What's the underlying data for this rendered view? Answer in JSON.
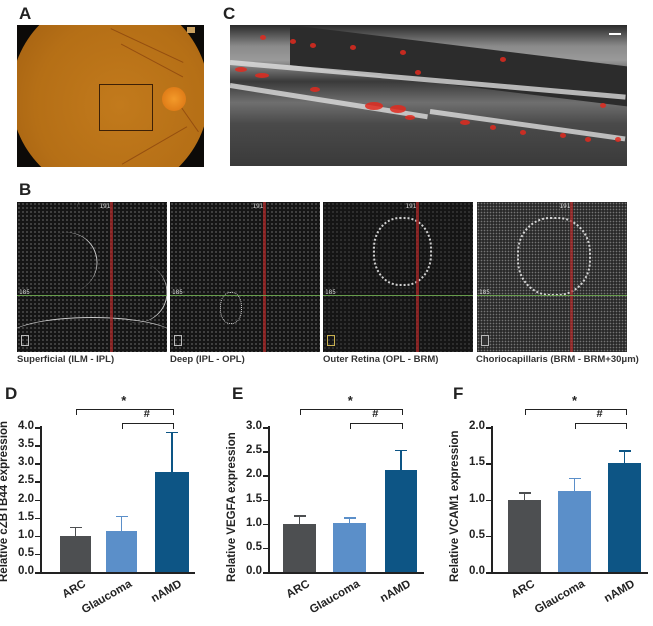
{
  "figure": {
    "panel_labels": {
      "A": "A",
      "B": "B",
      "C": "C",
      "D": "D",
      "E": "E",
      "F": "F"
    },
    "panel_A": {
      "description": "Color fundus photograph with boxed region of interest near macula",
      "colors": {
        "fundus": "#b56f16",
        "optic_disc": "#f39a2a",
        "roi_box": "#3d2006"
      }
    },
    "panel_C": {
      "description": "OCT B-scan with red flow-signal overlay",
      "overlay_color": "#e02a1e"
    },
    "panel_B": {
      "tick_top": "191",
      "tick_left": "185",
      "captions": [
        "Superficial (ILM - IPL)",
        "Deep (IPL - OPL)",
        "Outer Retina (OPL - BRM)",
        "Choriocapillaris (BRM - BRM+30μm)"
      ],
      "line_colors": {
        "vertical": "#b42828",
        "horizontal": "#6eaa50"
      }
    }
  },
  "chart_data": [
    {
      "panel": "D",
      "type": "bar",
      "title": "",
      "categories": [
        "ARC",
        "Glaucoma",
        "nAMD"
      ],
      "values": [
        1.0,
        1.13,
        2.75
      ],
      "error": [
        0.25,
        0.42,
        1.12
      ],
      "colors": [
        "#4d4f51",
        "#5b8fc9",
        "#0d5585"
      ],
      "xlabel": "",
      "ylabel": "Relative cZBTB44 expression",
      "ylim": [
        0,
        4.0
      ],
      "yticks": [
        "0.0",
        "0.5",
        "1.0",
        "1.5",
        "2.0",
        "2.5",
        "3.0",
        "3.5",
        "4.0"
      ],
      "annotations": [
        {
          "from": "ARC",
          "to": "nAMD",
          "label": "*"
        },
        {
          "from": "Glaucoma",
          "to": "nAMD",
          "label": "#"
        }
      ],
      "grid": false
    },
    {
      "panel": "E",
      "type": "bar",
      "title": "",
      "categories": [
        "ARC",
        "Glaucoma",
        "nAMD"
      ],
      "values": [
        1.0,
        1.01,
        2.11
      ],
      "error": [
        0.17,
        0.12,
        0.42
      ],
      "colors": [
        "#4d4f51",
        "#5b8fc9",
        "#0d5585"
      ],
      "xlabel": "",
      "ylabel": "Relative VEGFA expression",
      "ylim": [
        0,
        3.0
      ],
      "yticks": [
        "0.0",
        "0.5",
        "1.0",
        "1.5",
        "2.0",
        "2.5",
        "3.0"
      ],
      "annotations": [
        {
          "from": "ARC",
          "to": "nAMD",
          "label": "*"
        },
        {
          "from": "Glaucoma",
          "to": "nAMD",
          "label": "#"
        }
      ],
      "grid": false
    },
    {
      "panel": "F",
      "type": "bar",
      "title": "",
      "categories": [
        "ARC",
        "Glaucoma",
        "nAMD"
      ],
      "values": [
        1.0,
        1.12,
        1.5
      ],
      "error": [
        0.1,
        0.18,
        0.18
      ],
      "colors": [
        "#4d4f51",
        "#5b8fc9",
        "#0d5585"
      ],
      "xlabel": "",
      "ylabel": "Relative VCAM1 expression",
      "ylim": [
        0,
        2.0
      ],
      "yticks": [
        "0.0",
        "0.5",
        "1.0",
        "1.5",
        "2.0"
      ],
      "annotations": [
        {
          "from": "ARC",
          "to": "nAMD",
          "label": "*"
        },
        {
          "from": "Glaucoma",
          "to": "nAMD",
          "label": "#"
        }
      ],
      "grid": false
    }
  ]
}
